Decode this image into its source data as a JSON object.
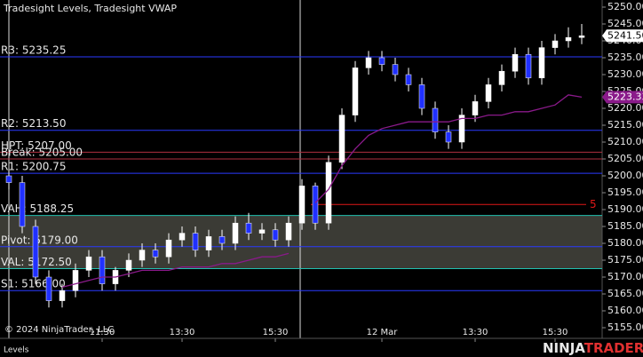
{
  "chart_data": {
    "type": "candlestick",
    "title": "Tradesight Levels, Tradesight VWAP",
    "copyright": "© 2024 NinjaTrader, LLC",
    "tab": "Levels",
    "logo": [
      "NINJA",
      "TRADER"
    ],
    "open": [
      5200,
      5198,
      5185,
      5170,
      5163,
      5166,
      5172,
      5176,
      5168,
      5172,
      5175,
      5178,
      5176,
      5181,
      5183,
      5178,
      5182,
      5180,
      5186,
      5183,
      5184,
      5181,
      5186,
      5197,
      5186,
      5204,
      5218,
      5232,
      5235,
      5233,
      5230,
      5227,
      5220,
      5213,
      5210,
      5218,
      5222,
      5227,
      5231,
      5236,
      5229,
      5238,
      5240,
      5241
    ],
    "high": [
      5202,
      5200,
      5187,
      5172,
      5168,
      5174,
      5178,
      5178,
      5173,
      5177,
      5180,
      5180,
      5183,
      5185,
      5185,
      5184,
      5184,
      5188,
      5189,
      5186,
      5186,
      5188,
      5199,
      5198,
      5206,
      5220,
      5234,
      5237,
      5237,
      5235,
      5232,
      5229,
      5222,
      5215,
      5220,
      5224,
      5229,
      5233,
      5238,
      5238,
      5240,
      5242,
      5244,
      5245
    ],
    "low": [
      5196,
      5183,
      5168,
      5161,
      5161,
      5164,
      5170,
      5166,
      5166,
      5170,
      5173,
      5174,
      5174,
      5179,
      5176,
      5176,
      5178,
      5178,
      5181,
      5181,
      5179,
      5179,
      5184,
      5184,
      5184,
      5202,
      5216,
      5230,
      5231,
      5228,
      5225,
      5218,
      5211,
      5208,
      5208,
      5216,
      5220,
      5225,
      5229,
      5227,
      5227,
      5236,
      5238,
      5239
    ],
    "close": [
      5198,
      5185,
      5170,
      5163,
      5166,
      5172,
      5176,
      5168,
      5172,
      5175,
      5178,
      5176,
      5181,
      5183,
      5178,
      5182,
      5180,
      5186,
      5183,
      5184,
      5181,
      5186,
      5197,
      5186,
      5204,
      5218,
      5232,
      5235,
      5233,
      5230,
      5227,
      5220,
      5213,
      5210,
      5218,
      5222,
      5227,
      5231,
      5236,
      5229,
      5238,
      5240,
      5241,
      5241.5
    ],
    "up_color": "#ffffff",
    "down_color": "#2030ff",
    "wick_color": "#ffffff",
    "vwap": {
      "color": "#8a1a8a",
      "values": [
        null,
        null,
        null,
        null,
        5167,
        5168,
        5169,
        5170,
        5170,
        5171,
        5172,
        5172,
        5172,
        5173,
        5173,
        5173,
        5174,
        5174,
        5175,
        5176,
        5176,
        5177,
        null,
        5192,
        5196,
        5203,
        5208,
        5212,
        5214,
        5215,
        5216,
        5216,
        5216,
        5216,
        5217,
        5217,
        5218,
        5218,
        5219,
        5219,
        5220,
        5221,
        5224,
        5223.33
      ]
    },
    "last_price": {
      "value": 5241.5,
      "label": "5241.50"
    },
    "vwap_price": {
      "value": 5223.33,
      "label": "5223.33"
    },
    "levels": [
      {
        "label": "R3: 5235.25",
        "value": 5235.25,
        "color": "#2a3aff"
      },
      {
        "label": "R2: 5213.50",
        "value": 5213.5,
        "color": "#2a3aff"
      },
      {
        "label": "HPT: 5207.00",
        "value": 5207,
        "color": "#b03040"
      },
      {
        "label": "Break: 5205.00",
        "value": 5205,
        "color": "#b03040"
      },
      {
        "label": "R1: 5200.75",
        "value": 5200.75,
        "color": "#2a3aff"
      },
      {
        "label": "VAH: 5188.25",
        "value": 5188.25,
        "color": "#20c0b0"
      },
      {
        "label": "Pivot: 5179.00",
        "value": 5179,
        "color": "#2a3aff"
      },
      {
        "label": "VAL: 5172.50",
        "value": 5172.5,
        "color": "#20c0b0"
      },
      {
        "label": "S1: 5166.00",
        "value": 5166,
        "color": "#2a3aff"
      }
    ],
    "value_area_color": "#4a4a42",
    "target": {
      "value": 5191.5,
      "label": "5",
      "color": "#e01818",
      "start": 23
    },
    "xticks": [
      {
        "value": 7,
        "label": "11:30"
      },
      {
        "value": 13,
        "label": "13:30"
      },
      {
        "value": 20,
        "label": "15:30"
      },
      {
        "value": 28,
        "label": "12 Mar"
      },
      {
        "value": 35,
        "label": "13:30"
      },
      {
        "value": 41,
        "label": "15:30"
      }
    ],
    "ylim": [
      5155,
      5250
    ],
    "yticks": [
      {
        "value": 5155,
        "label": "5155.00"
      },
      {
        "value": 5160,
        "label": "5160.00"
      },
      {
        "value": 5165,
        "label": "5165.00"
      },
      {
        "value": 5170,
        "label": "5170.00"
      },
      {
        "value": 5175,
        "label": "5175.00"
      },
      {
        "value": 5180,
        "label": "5180.00"
      },
      {
        "value": 5185,
        "label": "5185.00"
      },
      {
        "value": 5190,
        "label": "5190.00"
      },
      {
        "value": 5195,
        "label": "5195.00"
      },
      {
        "value": 5200,
        "label": "5200.00"
      },
      {
        "value": 5205,
        "label": "5205.00"
      },
      {
        "value": 5210,
        "label": "5210.00"
      },
      {
        "value": 5215,
        "label": "5215.00"
      },
      {
        "value": 5220,
        "label": "5220.00"
      },
      {
        "value": 5225,
        "label": "5225.00"
      },
      {
        "value": 5230,
        "label": "5230.00"
      },
      {
        "value": 5235,
        "label": "5235.00"
      },
      {
        "value": 5240,
        "label": "5240.00"
      },
      {
        "value": 5245,
        "label": "5245.00"
      },
      {
        "value": 5250,
        "label": "5250.00"
      }
    ]
  }
}
